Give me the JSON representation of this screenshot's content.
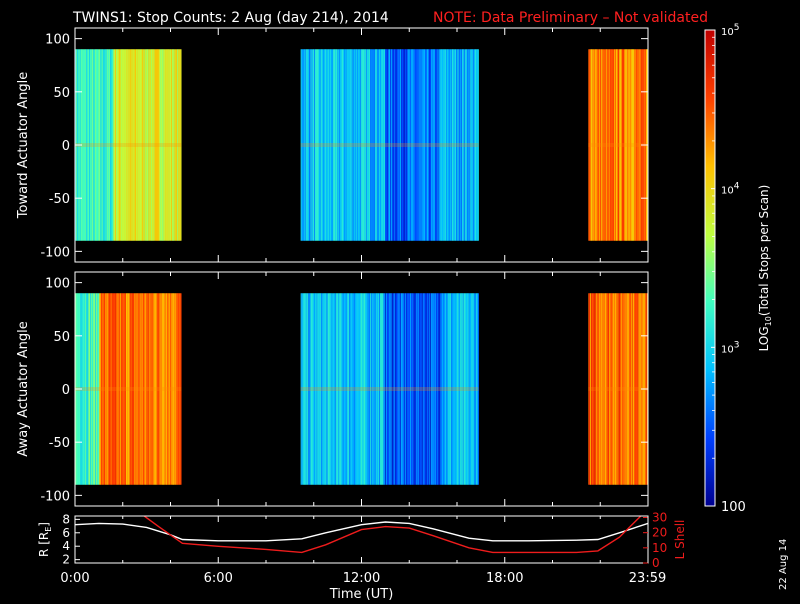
{
  "header": {
    "title": "TWINS1: Stop Counts:  2 Aug (day 214), 2014",
    "note": "NOTE: Data Preliminary – Not validated"
  },
  "colors": {
    "background": "#000000",
    "foreground": "#ffffff",
    "note": "#ff2020",
    "lshell": "#ee1c1c",
    "colormap": [
      "#000090",
      "#0040ff",
      "#00c0ff",
      "#40ffc0",
      "#c0ff40",
      "#ffc000",
      "#ff4000",
      "#c00000"
    ]
  },
  "date_stamp": "22 Aug 14",
  "colorbar": {
    "title_prefix": "LOG",
    "title_sub": "10",
    "title_suffix": "(Total Stops per Scan)",
    "ticks": [
      {
        "value": 100000,
        "base": "10",
        "exp": "5"
      },
      {
        "value": 10000,
        "base": "10",
        "exp": "4"
      },
      {
        "value": 1000,
        "base": "10",
        "exp": "3"
      },
      {
        "value": 100,
        "base": "100",
        "exp": ""
      }
    ],
    "range": [
      100,
      100000
    ],
    "scale": "log"
  },
  "chart_data": [
    {
      "type": "heatmap",
      "ylabel": "Toward Actuator Angle",
      "ylim": [
        -110,
        110
      ],
      "yticks": [
        100,
        50,
        0,
        -50,
        -100
      ],
      "y_extent": [
        -90,
        90
      ],
      "xlim": [
        0,
        24
      ],
      "coverage_hours": [
        [
          0.0,
          4.45
        ],
        [
          9.45,
          16.9
        ],
        [
          21.5,
          24.0
        ]
      ],
      "value_scale": "log10 counts (2 to 5)",
      "level_bands": [
        {
          "from": 0.0,
          "to": 1.6,
          "level": 3.2
        },
        {
          "from": 1.6,
          "to": 4.45,
          "level": 3.85
        },
        {
          "from": 9.45,
          "to": 13.0,
          "level": 2.9
        },
        {
          "from": 13.0,
          "to": 15.3,
          "level": 2.55
        },
        {
          "from": 15.3,
          "to": 16.9,
          "level": 2.85
        },
        {
          "from": 21.5,
          "to": 24.0,
          "level": 4.35
        }
      ]
    },
    {
      "type": "heatmap",
      "ylabel": "Away Actuator Angle",
      "ylim": [
        -110,
        110
      ],
      "yticks": [
        100,
        50,
        0,
        -50,
        -100
      ],
      "y_extent": [
        -90,
        90
      ],
      "xlim": [
        0,
        24
      ],
      "coverage_hours": [
        [
          0.0,
          4.45
        ],
        [
          9.45,
          16.9
        ],
        [
          21.5,
          24.0
        ]
      ],
      "value_scale": "log10 counts (2 to 5)",
      "level_bands": [
        {
          "from": 0.0,
          "to": 1.0,
          "level": 3.3
        },
        {
          "from": 1.0,
          "to": 4.45,
          "level": 4.4
        },
        {
          "from": 9.45,
          "to": 13.0,
          "level": 2.9
        },
        {
          "from": 13.0,
          "to": 15.3,
          "level": 2.5
        },
        {
          "from": 15.3,
          "to": 16.9,
          "level": 2.85
        },
        {
          "from": 21.5,
          "to": 24.0,
          "level": 4.45
        }
      ]
    },
    {
      "type": "line",
      "xlabel": "Time (UT)",
      "ylabel": "R [R",
      "ylabel_sub": "E",
      "ylabel_end": "]",
      "ylabel2": "L Shell",
      "xlim": [
        0,
        24
      ],
      "xtick_labels": [
        {
          "x": 0,
          "label": "0:00"
        },
        {
          "x": 6,
          "label": "6:00"
        },
        {
          "x": 12,
          "label": "12:00"
        },
        {
          "x": 18,
          "label": "18:00"
        },
        {
          "x": 23.98,
          "label": "23:59"
        }
      ],
      "ylim": [
        1.5,
        8.5
      ],
      "yticks": [
        8,
        6,
        4,
        2
      ],
      "ylim2": [
        0,
        31
      ],
      "yticks2": [
        30,
        20,
        10,
        0
      ],
      "series": [
        {
          "axis": "left",
          "color": "#ffffff",
          "x": [
            0,
            1,
            2,
            3,
            4,
            4.5,
            6,
            8,
            9.5,
            10.5,
            12,
            13,
            14,
            15,
            16.5,
            17.5,
            19,
            21,
            21.9,
            22.8,
            24
          ],
          "y": [
            7.2,
            7.4,
            7.3,
            6.8,
            5.7,
            5.0,
            4.8,
            4.8,
            5.1,
            6.0,
            7.2,
            7.6,
            7.4,
            6.6,
            5.2,
            4.8,
            4.8,
            4.9,
            5.0,
            6.0,
            7.4
          ]
        },
        {
          "axis": "right",
          "color": "#ee1c1c",
          "x": [
            2.9,
            3.5,
            4.5,
            6,
            8,
            9.5,
            10.5,
            12,
            13,
            14,
            15,
            16.5,
            17.5,
            19,
            21,
            21.9,
            22.8,
            23.7
          ],
          "y": [
            31,
            24,
            13,
            11,
            9,
            7,
            12,
            22,
            24,
            23,
            18,
            10,
            7,
            7,
            7,
            8,
            17,
            31
          ]
        }
      ]
    }
  ]
}
